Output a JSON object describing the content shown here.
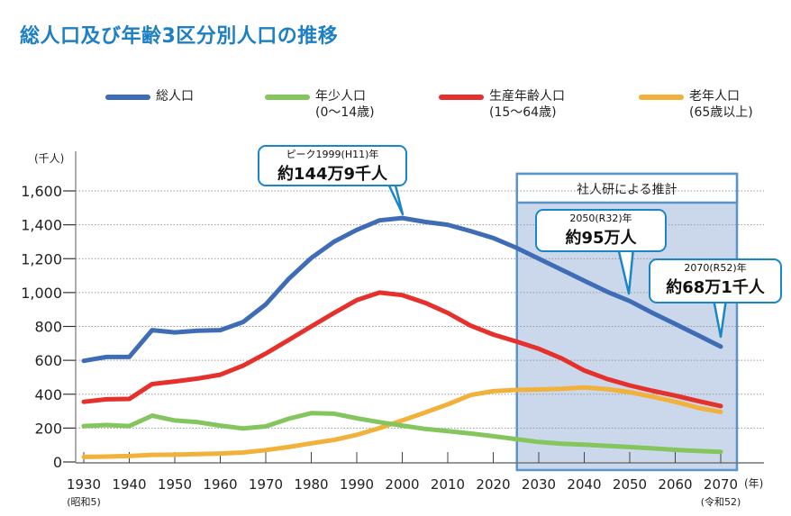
{
  "title": "総人口及び年齢3区分別人口の推移",
  "legend": [
    {
      "label": "総人口",
      "sub": ""
    },
    {
      "label": "年少人口",
      "sub": "(0〜14歳)"
    },
    {
      "label": "生産年齢人口",
      "sub": "(15〜64歳)"
    },
    {
      "label": "老年人口",
      "sub": "(65歳以上)"
    }
  ],
  "projection_label": "社人研による推計",
  "callouts": {
    "peak": {
      "small": "ピーク1999(H11)年",
      "big": "約144万9千人"
    },
    "y2050": {
      "small": "2050(R32)年",
      "big": "約95万人"
    },
    "y2070": {
      "small": "2070(R52)年",
      "big": "約68万1千人"
    }
  },
  "chart_data": {
    "type": "line",
    "title": "総人口及び年齢3区分別人口の推移",
    "ylabel": "(千人)",
    "xlabel": "(年)",
    "ylim": [
      0,
      1600
    ],
    "xlim": [
      1930,
      2070
    ],
    "yticks": [
      "0",
      "200",
      "400",
      "600",
      "800",
      "1,000",
      "1,200",
      "1,400",
      "1,600"
    ],
    "xticks": [
      "1930",
      "1940",
      "1950",
      "1960",
      "1970",
      "1980",
      "1990",
      "2000",
      "2010",
      "2020",
      "2030",
      "2040",
      "2050",
      "2060",
      "2070"
    ],
    "xtick_sublabels": {
      "1930": "(昭和5)",
      "2070": "(令和52)"
    },
    "grid": true,
    "legend_position": "top",
    "projection_range": [
      2025,
      2070
    ],
    "x": [
      1930,
      1935,
      1940,
      1945,
      1950,
      1955,
      1960,
      1965,
      1970,
      1975,
      1980,
      1985,
      1990,
      1995,
      2000,
      2005,
      2010,
      2015,
      2020,
      2025,
      2030,
      2035,
      2040,
      2045,
      2050,
      2055,
      2060,
      2065,
      2070
    ],
    "series": [
      {
        "name": "総人口",
        "color": "#3f6db5",
        "values": [
          597,
          620,
          620,
          778,
          765,
          775,
          778,
          826,
          930,
          1080,
          1204,
          1300,
          1370,
          1426,
          1440,
          1417,
          1400,
          1363,
          1322,
          1265,
          1200,
          1135,
          1070,
          1005,
          950,
          880,
          815,
          748,
          681
        ]
      },
      {
        "name": "年少人口(0〜14歳)",
        "color": "#84c55d",
        "values": [
          212,
          218,
          212,
          273,
          245,
          235,
          215,
          198,
          210,
          255,
          288,
          285,
          258,
          235,
          215,
          195,
          182,
          168,
          152,
          135,
          118,
          108,
          102,
          95,
          88,
          80,
          72,
          65,
          60
        ]
      },
      {
        "name": "生産年齢人口(15〜64歳)",
        "color": "#e5302b",
        "values": [
          355,
          370,
          372,
          460,
          475,
          492,
          515,
          568,
          640,
          720,
          800,
          880,
          955,
          1000,
          985,
          940,
          880,
          805,
          752,
          712,
          668,
          612,
          540,
          490,
          452,
          420,
          392,
          360,
          330
        ]
      },
      {
        "name": "老年人口(65歳以上)",
        "color": "#f1b13a",
        "values": [
          30,
          32,
          35,
          42,
          43,
          46,
          50,
          56,
          70,
          88,
          110,
          130,
          160,
          200,
          245,
          292,
          340,
          395,
          418,
          425,
          428,
          432,
          440,
          430,
          412,
          385,
          355,
          320,
          295
        ]
      }
    ]
  }
}
